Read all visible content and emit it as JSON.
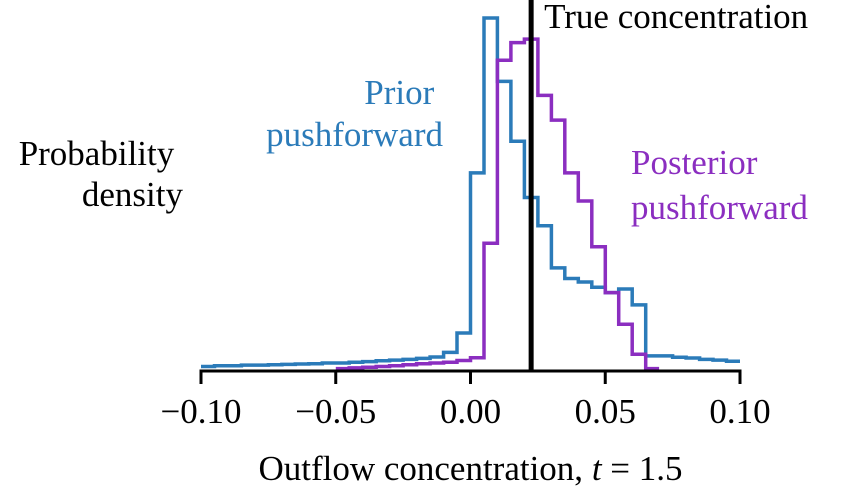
{
  "chart_data": {
    "type": "step",
    "xlabel": "Outflow concentration, t = 1.5",
    "xlabel_main": "Outflow concentration, ",
    "xlabel_var": "t",
    "xlabel_rest": " = 1.5",
    "ylabel_lines": [
      "Probability",
      "density"
    ],
    "xlim": [
      -0.1,
      0.1
    ],
    "ylim": [
      0,
      1.0
    ],
    "x_ticks": [
      -0.1,
      -0.05,
      0.0,
      0.05,
      0.1
    ],
    "x_tick_labels": [
      "−0.10",
      "−0.05",
      "0.00",
      "0.05",
      "0.10"
    ],
    "vline": {
      "x": 0.0225,
      "label": "True concentration",
      "color": "#000000"
    },
    "series": [
      {
        "name": "Prior pushforward",
        "label_lines": [
          "Prior",
          "pushforward"
        ],
        "color": "#2b7bb9",
        "edges": [
          -0.1,
          -0.095,
          -0.09,
          -0.085,
          -0.08,
          -0.075,
          -0.07,
          -0.065,
          -0.06,
          -0.055,
          -0.05,
          -0.045,
          -0.04,
          -0.035,
          -0.03,
          -0.025,
          -0.02,
          -0.015,
          -0.01,
          -0.005,
          0.0,
          0.005,
          0.01,
          0.015,
          0.02,
          0.025,
          0.03,
          0.035,
          0.04,
          0.045,
          0.05,
          0.055,
          0.06,
          0.065,
          0.07,
          0.075,
          0.08,
          0.085,
          0.09,
          0.095,
          0.1
        ],
        "values": [
          0.01,
          0.012,
          0.012,
          0.014,
          0.014,
          0.015,
          0.016,
          0.017,
          0.018,
          0.02,
          0.02,
          0.022,
          0.024,
          0.026,
          0.028,
          0.03,
          0.033,
          0.037,
          0.05,
          0.105,
          0.56,
          1.0,
          0.82,
          0.65,
          0.49,
          0.41,
          0.29,
          0.26,
          0.25,
          0.235,
          0.22,
          0.23,
          0.185,
          0.04,
          0.04,
          0.036,
          0.034,
          0.03,
          0.028,
          0.025
        ]
      },
      {
        "name": "Posterior pushforward",
        "label_lines": [
          "Posterior",
          "pushforward"
        ],
        "color": "#8b2ec0",
        "edges": [
          -0.05,
          -0.045,
          -0.04,
          -0.035,
          -0.03,
          -0.025,
          -0.02,
          -0.015,
          -0.01,
          -0.005,
          0.0,
          0.005,
          0.01,
          0.015,
          0.02,
          0.025,
          0.03,
          0.035,
          0.04,
          0.045,
          0.05,
          0.055,
          0.06,
          0.065,
          0.07
        ],
        "values": [
          0.004,
          0.006,
          0.008,
          0.01,
          0.012,
          0.015,
          0.018,
          0.02,
          0.022,
          0.027,
          0.035,
          0.36,
          0.88,
          0.93,
          0.94,
          0.78,
          0.71,
          0.56,
          0.48,
          0.35,
          0.22,
          0.13,
          0.045,
          0.004
        ]
      }
    ],
    "grid": false,
    "legend": "inline labels"
  }
}
